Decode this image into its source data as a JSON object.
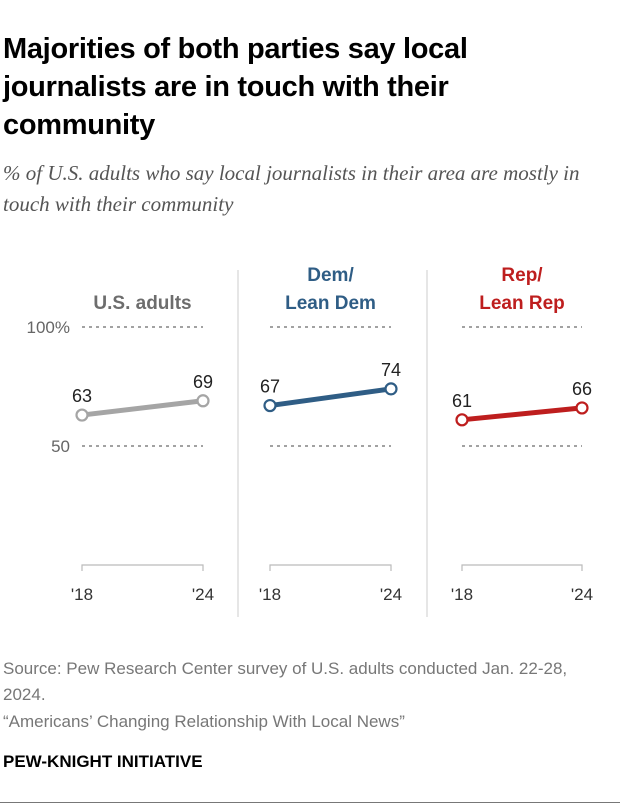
{
  "title": "Majorities of both parties say local journalists are in touch with their community",
  "subtitle": "% of U.S. adults who say local journalists in their area are mostly in touch with their community",
  "chart_data": {
    "type": "line",
    "layout": "small multiples",
    "x": [
      "'18",
      "'24"
    ],
    "yticks": [
      "100%",
      "50"
    ],
    "ylim": [
      0,
      100
    ],
    "grid": true,
    "panels": [
      {
        "name": "U.S. adults",
        "title_lines": [
          "U.S. adults"
        ],
        "color": "#a5a5a5",
        "label_color": "#6d6d6d",
        "values": [
          63,
          69
        ]
      },
      {
        "name": "Dem/Lean Dem",
        "title_lines": [
          "Dem/",
          "Lean Dem"
        ],
        "color": "#2f5d85",
        "label_color": "#2f5d85",
        "values": [
          67,
          74
        ]
      },
      {
        "name": "Rep/Lean Rep",
        "title_lines": [
          "Rep/",
          "Lean Rep"
        ],
        "color": "#be1e1e",
        "label_color": "#be1e1e",
        "values": [
          61,
          66
        ]
      }
    ]
  },
  "source_line1": "Source: Pew Research Center survey of U.S. adults conducted Jan. 22-28, 2024.",
  "report_title": "“Americans’ Changing Relationship With Local News”",
  "brand": "PEW-KNIGHT INITIATIVE"
}
